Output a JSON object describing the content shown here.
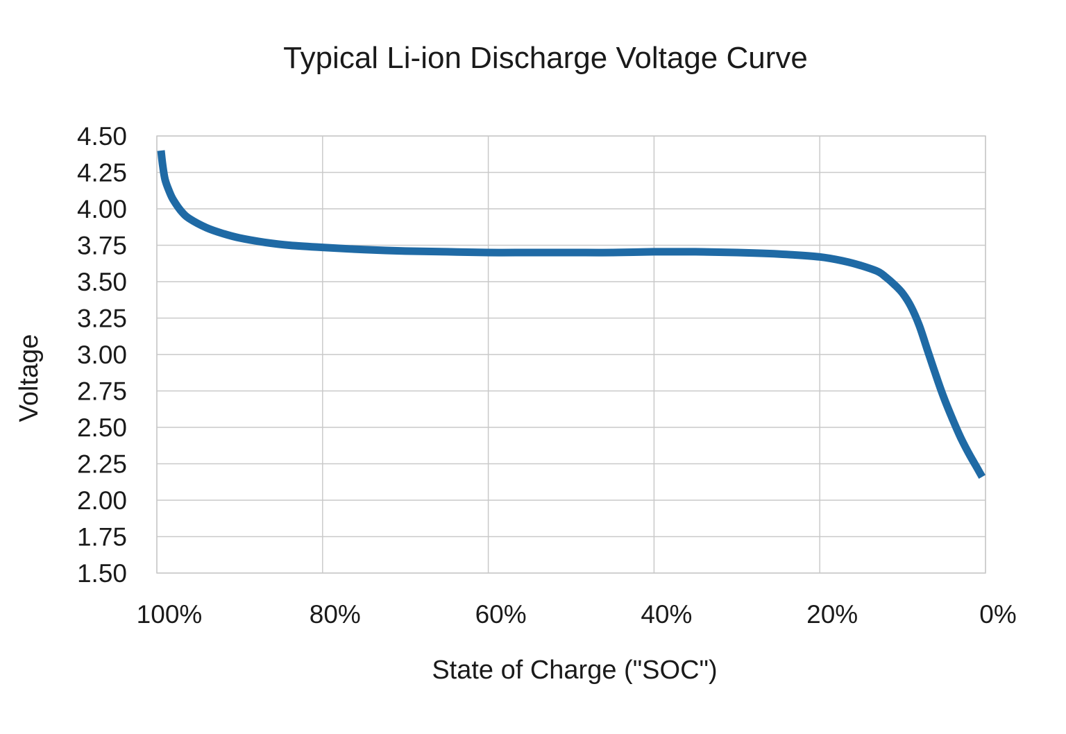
{
  "chart_data": {
    "type": "line",
    "title": "Typical Li-ion Discharge Voltage Curve",
    "xlabel": "State of Charge (\"SOC\")",
    "ylabel": "Voltage",
    "xlim": [
      100,
      0
    ],
    "ylim": [
      1.5,
      4.5
    ],
    "grid": true,
    "legend": "none",
    "xticks": [
      100,
      80,
      60,
      40,
      20,
      0
    ],
    "xtick_labels": [
      "100%",
      "80%",
      "60%",
      "40%",
      "20%",
      "0%"
    ],
    "yticks": [
      4.5,
      4.25,
      4.0,
      3.75,
      3.5,
      3.25,
      3.0,
      2.75,
      2.5,
      2.25,
      2.0,
      1.75,
      1.5
    ],
    "ytick_labels": [
      "4.50",
      "4.25",
      "4.00",
      "3.75",
      "3.50",
      "3.25",
      "3.00",
      "2.75",
      "2.50",
      "2.25",
      "2.00",
      "1.75",
      "1.50"
    ],
    "series": [
      {
        "name": "Voltage",
        "color": "#1f6aa5",
        "x": [
          99.5,
          99.3,
          99.0,
          98.5,
          98.0,
          97.0,
          96.0,
          94.0,
          92.0,
          90.0,
          87.0,
          84.0,
          80.0,
          75.0,
          70.0,
          65.0,
          60.0,
          55.0,
          50.0,
          45.0,
          40.0,
          35.0,
          30.0,
          25.0,
          20.0,
          17.0,
          15.0,
          13.0,
          12.0,
          11.0,
          10.0,
          9.0,
          8.0,
          7.0,
          6.0,
          5.0,
          4.0,
          3.0,
          2.0,
          1.0,
          0.4
        ],
        "y": [
          4.4,
          4.3,
          4.2,
          4.12,
          4.06,
          3.98,
          3.93,
          3.87,
          3.83,
          3.8,
          3.77,
          3.75,
          3.735,
          3.72,
          3.71,
          3.705,
          3.7,
          3.7,
          3.7,
          3.7,
          3.705,
          3.705,
          3.7,
          3.69,
          3.67,
          3.64,
          3.61,
          3.57,
          3.53,
          3.48,
          3.42,
          3.33,
          3.2,
          3.03,
          2.86,
          2.7,
          2.56,
          2.43,
          2.32,
          2.22,
          2.16
        ]
      }
    ]
  }
}
